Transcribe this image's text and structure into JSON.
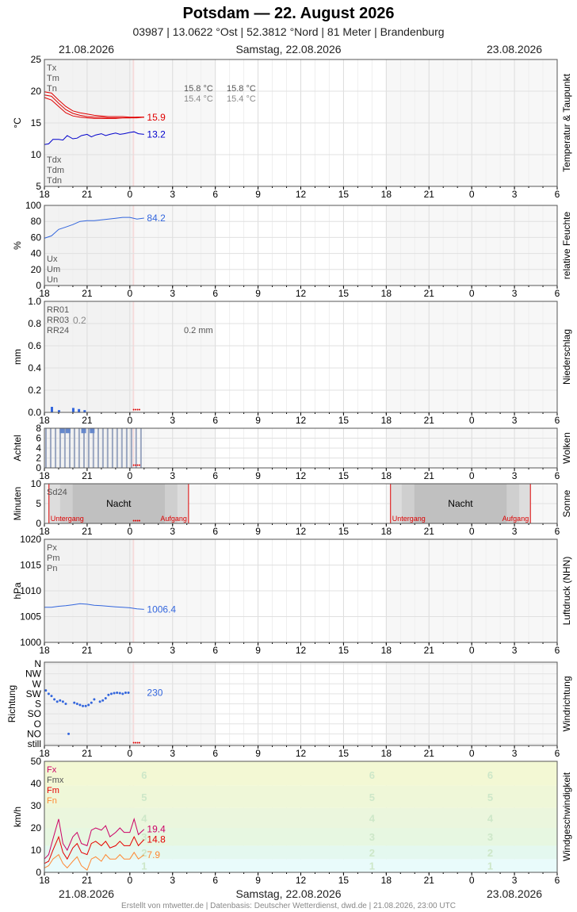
{
  "header": {
    "title": "Potsdam  —  22. August 2026",
    "subtitle": "03987  |  13.0622 °Ost  |  52.3812 °Nord  |  81 Meter  |  Brandenburg",
    "date_left": "21.08.2026",
    "date_center": "Samstag, 22.08.2026",
    "date_right": "23.08.2026"
  },
  "footer": {
    "text": "Erstellt von mtwetter.de | Datenbasis: Deutscher Wetterdienst, dwd.de | 21.08.2026, 23:00 UTC"
  },
  "x_ticks": [
    "18",
    "21",
    "0",
    "3",
    "6",
    "9",
    "12",
    "15",
    "18",
    "21",
    "0",
    "3",
    "6"
  ],
  "colors": {
    "red": "#e00000",
    "blue": "#0000cc",
    "accent": "#3366dd",
    "grid": "#dddddd"
  },
  "chart_data": [
    {
      "type": "line",
      "panel": "temperature",
      "side_label": "Temperatur & Taupunkt",
      "ylabel": "°C",
      "ylim": [
        5,
        25
      ],
      "yticks": [
        "5",
        "10",
        "15",
        "20",
        "25"
      ],
      "legend_top": [
        "Tx",
        "Tm",
        "Tn"
      ],
      "legend_bottom": [
        "Tdx",
        "Tdm",
        "Tdn"
      ],
      "annotations": [
        {
          "text": "15.8 °C",
          "color": "#555555"
        },
        {
          "text": "15.8 °C",
          "color": "#555555"
        },
        {
          "text": "15.4 °C",
          "color": "#888888"
        },
        {
          "text": "15.4 °C",
          "color": "#888888"
        }
      ],
      "series": [
        {
          "name": "Tx",
          "color": "#e00000",
          "x": [
            18,
            18.5,
            19,
            19.5,
            20,
            20.5,
            21,
            21.5,
            22,
            22.5,
            23,
            23.5,
            24,
            24.5,
            25
          ],
          "values": [
            19.9,
            19.7,
            18.6,
            17.6,
            16.9,
            16.6,
            16.4,
            16.2,
            16.1,
            16.0,
            16.0,
            16.0,
            15.9,
            15.9,
            15.9
          ]
        },
        {
          "name": "Tm",
          "color": "#e00000",
          "x": [
            18,
            18.5,
            19,
            19.5,
            20,
            20.5,
            21,
            21.5,
            22,
            22.5,
            23,
            23.5,
            24,
            24.5,
            25
          ],
          "values": [
            19.4,
            19.2,
            18.1,
            17.1,
            16.5,
            16.2,
            16.0,
            15.9,
            15.9,
            15.8,
            15.8,
            15.8,
            15.8,
            15.9,
            15.9
          ]
        },
        {
          "name": "Tn",
          "color": "#e00000",
          "x": [
            18,
            18.5,
            19,
            19.5,
            20,
            20.5,
            21,
            21.5,
            22,
            22.5,
            23,
            23.5,
            24,
            24.5,
            25
          ],
          "values": [
            19.0,
            18.6,
            17.6,
            16.6,
            16.1,
            15.9,
            15.8,
            15.7,
            15.7,
            15.7,
            15.7,
            15.8,
            15.8,
            15.8,
            15.9
          ]
        },
        {
          "name": "Td",
          "color": "#0000cc",
          "x": [
            18,
            18.3,
            18.6,
            19,
            19.3,
            19.6,
            20,
            20.3,
            20.6,
            21,
            21.3,
            21.6,
            22,
            22.3,
            22.6,
            23,
            23.3,
            23.6,
            24,
            24.3,
            24.6,
            25
          ],
          "values": [
            11.6,
            11.7,
            12.4,
            12.4,
            12.3,
            13.0,
            12.5,
            12.6,
            13.0,
            13.2,
            12.8,
            13.1,
            13.3,
            13.0,
            13.2,
            13.4,
            13.2,
            13.3,
            13.5,
            13.6,
            13.3,
            13.2
          ]
        }
      ],
      "end_labels": [
        {
          "text": "15.9",
          "color": "#e00000",
          "value": 15.9
        },
        {
          "text": "13.2",
          "color": "#0000cc",
          "value": 13.2
        }
      ]
    },
    {
      "type": "line",
      "panel": "humidity",
      "side_label": "relative Feuchte",
      "ylabel": "%",
      "ylim": [
        0,
        100
      ],
      "yticks": [
        "0",
        "20",
        "40",
        "60",
        "80",
        "100"
      ],
      "legend_bottom": [
        "Ux",
        "Um",
        "Un"
      ],
      "series": [
        {
          "name": "U",
          "color": "#3366dd",
          "x": [
            18,
            18.5,
            19,
            19.5,
            20,
            20.5,
            21,
            21.5,
            22,
            22.5,
            23,
            23.5,
            24,
            24.5,
            25
          ],
          "values": [
            59,
            62,
            70,
            73,
            76,
            80,
            81,
            81,
            82,
            83,
            84,
            85,
            85,
            83,
            84.2
          ]
        }
      ],
      "end_labels": [
        {
          "text": "84.2",
          "color": "#3366dd",
          "value": 84.2
        }
      ]
    },
    {
      "type": "bar",
      "panel": "precipitation",
      "side_label": "Niederschlag",
      "ylabel": "mm",
      "ylim": [
        0,
        1.0
      ],
      "yticks": [
        "0.0",
        "0.2",
        "0.4",
        "0.6",
        "0.8",
        "1.0"
      ],
      "legend_top": [
        "RR01",
        "RR03",
        "RR24"
      ],
      "rr03_value": "0.2",
      "rr24_text": "0.2 mm",
      "x": [
        18.5,
        19.0,
        20.0,
        20.4,
        20.8
      ],
      "values": [
        0.05,
        0.02,
        0.04,
        0.03,
        0.02
      ]
    },
    {
      "type": "bar",
      "panel": "clouds",
      "side_label": "Wolken",
      "ylabel": "Achtel",
      "ylim": [
        0,
        8
      ],
      "yticks": [
        "0",
        "2",
        "4",
        "6",
        "8"
      ],
      "x": [
        18,
        18.33,
        18.67,
        19,
        19.33,
        19.67,
        20,
        20.33,
        20.67,
        21,
        21.33,
        21.67,
        22,
        22.33,
        22.67,
        23,
        23.33,
        23.67,
        24,
        24.33,
        24.67
      ],
      "values": [
        8,
        8,
        8,
        8,
        8,
        8,
        8,
        8,
        8,
        8,
        8,
        8,
        8,
        8,
        8,
        8,
        8,
        8,
        8,
        8,
        8
      ],
      "highlight_x": [
        19.2,
        19.6,
        20.7,
        21.3
      ]
    },
    {
      "type": "area",
      "panel": "sun",
      "side_label": "Sonne",
      "ylabel": "Minuten",
      "ylim": [
        0,
        10
      ],
      "yticks": [
        "0",
        "5",
        "10"
      ],
      "legend_top": [
        "Sd24"
      ],
      "nights": [
        {
          "label": "Nacht",
          "sunset_label": "Untergang",
          "sunrise_label": "Aufgang",
          "start": 18.32,
          "end": 28.12
        },
        {
          "label": "Nacht",
          "sunset_label": "Untergang",
          "sunrise_label": "Aufgang",
          "start": 42.3,
          "end": 52.12
        }
      ]
    },
    {
      "type": "line",
      "panel": "pressure",
      "side_label": "Luftdruck (NHN)",
      "ylabel": "hPa",
      "ylim": [
        1000,
        1020
      ],
      "yticks": [
        "1000",
        "1005",
        "1010",
        "1015",
        "1020"
      ],
      "legend_top": [
        "Px",
        "Pm",
        "Pn"
      ],
      "series": [
        {
          "name": "P",
          "color": "#3366dd",
          "x": [
            18,
            18.5,
            19,
            19.5,
            20,
            20.5,
            21,
            21.5,
            22,
            22.5,
            23,
            23.5,
            24,
            24.5,
            25
          ],
          "values": [
            1006.8,
            1006.8,
            1007.0,
            1007.1,
            1007.3,
            1007.5,
            1007.4,
            1007.2,
            1007.1,
            1007.0,
            1006.9,
            1006.8,
            1006.7,
            1006.5,
            1006.4
          ]
        }
      ],
      "end_labels": [
        {
          "text": "1006.4",
          "color": "#3366dd",
          "value": 1006.4
        }
      ]
    },
    {
      "type": "scatter",
      "panel": "wind_direction",
      "side_label": "Windrichtung",
      "ylabel": "Richtung",
      "yticks": [
        "still",
        "NO",
        "O",
        "SO",
        "S",
        "SW",
        "W",
        "NW",
        "N"
      ],
      "series": [
        {
          "name": "D",
          "color": "#3366dd",
          "x": [
            18.1,
            18.3,
            18.5,
            18.7,
            18.9,
            19.1,
            19.3,
            19.5,
            19.7,
            20.1,
            20.3,
            20.5,
            20.7,
            20.9,
            21.1,
            21.3,
            21.5,
            21.9,
            22.1,
            22.3,
            22.5,
            22.7,
            22.9,
            23.1,
            23.3,
            23.5,
            23.7,
            23.9
          ],
          "values": [
            240,
            225,
            215,
            200,
            190,
            195,
            190,
            180,
            45,
            185,
            180,
            175,
            170,
            170,
            175,
            185,
            200,
            190,
            195,
            205,
            220,
            225,
            228,
            230,
            228,
            225,
            230,
            230
          ]
        }
      ],
      "end_labels": [
        {
          "text": "230",
          "color": "#3366dd",
          "value": 230
        }
      ]
    },
    {
      "type": "line",
      "panel": "wind_speed",
      "side_label": "Windgeschwindigkeit",
      "ylabel": "km/h",
      "ylim": [
        0,
        50
      ],
      "yticks": [
        "0",
        "10",
        "20",
        "30",
        "40",
        "50"
      ],
      "legend_top": [
        {
          "text": "Fx",
          "color": "#cc0066"
        },
        {
          "text": "Fmx",
          "color": "#555555"
        },
        {
          "text": "Fm",
          "color": "#e60000"
        },
        {
          "text": "Fn",
          "color": "#ff8833"
        }
      ],
      "beaufort_labels": [
        "1",
        "2",
        "3",
        "4",
        "5",
        "6"
      ],
      "series": [
        {
          "name": "Fx",
          "color": "#cc0066",
          "x": [
            18,
            18.3,
            18.6,
            19,
            19.3,
            19.6,
            20,
            20.3,
            20.6,
            21,
            21.3,
            21.6,
            22,
            22.3,
            22.6,
            23,
            23.3,
            23.6,
            24,
            24.3,
            24.6,
            25
          ],
          "values": [
            6,
            8,
            15,
            24,
            13,
            10,
            16,
            18,
            13,
            12,
            19,
            20,
            19,
            21,
            16,
            18,
            20,
            18,
            18,
            24,
            17,
            19.4
          ]
        },
        {
          "name": "Fm",
          "color": "#e60000",
          "x": [
            18,
            18.3,
            18.6,
            19,
            19.3,
            19.6,
            20,
            20.3,
            20.6,
            21,
            21.3,
            21.6,
            22,
            22.3,
            22.6,
            23,
            23.3,
            23.6,
            24,
            24.3,
            24.6,
            25
          ],
          "values": [
            4,
            5,
            10,
            16,
            9,
            6,
            11,
            13,
            9,
            8,
            13,
            14,
            12,
            14,
            11,
            12,
            14,
            12,
            12,
            16,
            12,
            14.8
          ]
        },
        {
          "name": "Fn",
          "color": "#ff8833",
          "x": [
            18,
            18.3,
            18.6,
            19,
            19.3,
            19.6,
            20,
            20.3,
            20.6,
            21,
            21.3,
            21.6,
            22,
            22.3,
            22.6,
            23,
            23.3,
            23.6,
            24,
            24.3,
            24.6,
            25
          ],
          "values": [
            2,
            3,
            6,
            8,
            4,
            2,
            5,
            7,
            3,
            1,
            6,
            7,
            5,
            8,
            6,
            6,
            8,
            6,
            6,
            9,
            6,
            7.9
          ]
        }
      ],
      "end_labels": [
        {
          "text": "19.4",
          "color": "#cc0066",
          "value": 19.4
        },
        {
          "text": "14.8",
          "color": "#e60000",
          "value": 14.8
        },
        {
          "text": "7.9",
          "color": "#ff8833",
          "value": 7.9
        }
      ]
    }
  ]
}
